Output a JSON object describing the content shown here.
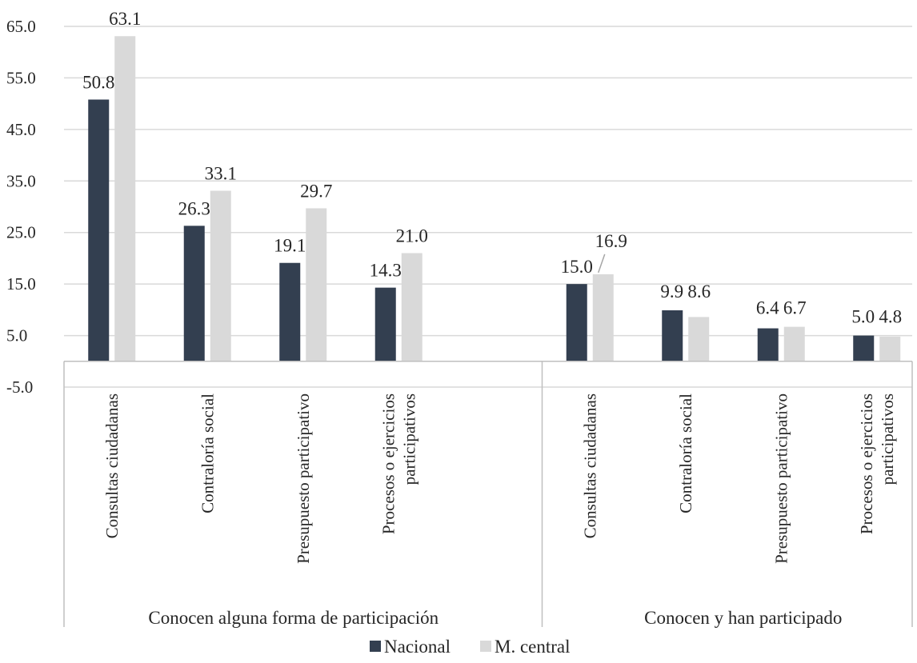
{
  "chart_data": {
    "type": "bar",
    "title": "",
    "xlabel": "",
    "ylabel": "",
    "ylim": [
      -5,
      65
    ],
    "yticks": [
      "65.0",
      "55.0",
      "45.0",
      "35.0",
      "25.0",
      "15.0",
      "5.0",
      "-5.0"
    ],
    "ytick_values": [
      65,
      55,
      45,
      35,
      25,
      15,
      5,
      -5
    ],
    "grid": true,
    "legend_position": "bottom",
    "groups": [
      {
        "label": "Conocen alguna forma de participación",
        "categories": [
          [
            "Consultas ciudadanas"
          ],
          [
            "Contraloría social"
          ],
          [
            "Presupuesto participativo"
          ],
          [
            "Procesos o ejercicios",
            "participativos"
          ]
        ]
      },
      {
        "label": "Conocen y han participado",
        "categories": [
          [
            "Consultas ciudadanas"
          ],
          [
            "Contraloría social"
          ],
          [
            "Presupuesto participativo"
          ],
          [
            "Procesos o ejercicios",
            "participativos"
          ]
        ]
      }
    ],
    "series": [
      {
        "name": "Nacional",
        "color": "#333f50",
        "values": [
          50.8,
          26.3,
          19.1,
          14.3,
          15.0,
          9.9,
          6.4,
          5.0
        ],
        "labels": [
          "50.8",
          "26.3",
          "19.1",
          "14.3",
          "15.0",
          "9.9",
          "6.4",
          "5.0"
        ]
      },
      {
        "name": "M. central",
        "color": "#d9d9d9",
        "values": [
          63.1,
          33.1,
          29.7,
          21.0,
          16.9,
          8.6,
          6.7,
          4.8
        ],
        "labels": [
          "63.1",
          "33.1",
          "29.7",
          "21.0",
          "16.9",
          "8.6",
          "6.7",
          "4.8"
        ]
      }
    ]
  }
}
